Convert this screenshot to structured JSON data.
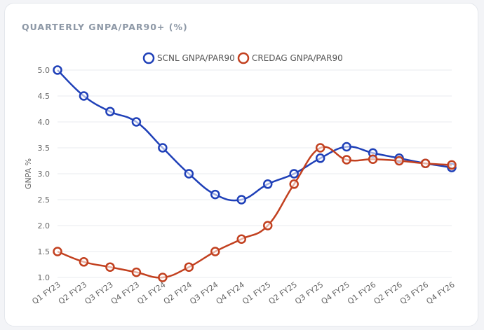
{
  "card": {
    "title": "QUARTERLY GNPA/PAR90+ (%)"
  },
  "chart_data": {
    "type": "line",
    "title": "",
    "ylabel": "GNPA %",
    "xlabel": "",
    "categories": [
      "Q1 FY23",
      "Q2 FY23",
      "Q3 FY23",
      "Q4 FY23",
      "Q1 FY24",
      "Q2 FY24",
      "Q3 FY24",
      "Q4 FY24",
      "Q1 FY25",
      "Q2 FY25",
      "Q3 FY25",
      "Q4 FY25",
      "Q1 FY26",
      "Q2 FY26",
      "Q3 FY26",
      "Q4 FY26"
    ],
    "ylim": [
      1.0,
      5.0
    ],
    "yticks": [
      "1.0",
      "1.5",
      "2.0",
      "2.5",
      "3.0",
      "3.5",
      "4.0",
      "4.5",
      "5.0"
    ],
    "grid": true,
    "legend_position": "top-center",
    "series": [
      {
        "name": "SCNL GNPA/PAR90",
        "color": "#1f40b8",
        "values": [
          5.0,
          4.5,
          4.2,
          4.0,
          3.5,
          3.0,
          2.6,
          2.5,
          2.8,
          3.0,
          3.3,
          3.52,
          3.4,
          3.3,
          3.2,
          3.12
        ]
      },
      {
        "name": "CREDAG GNPA/PAR90",
        "color": "#c2401f",
        "values": [
          1.5,
          1.3,
          1.2,
          1.1,
          1.0,
          1.2,
          1.5,
          1.74,
          2.0,
          2.8,
          3.5,
          3.27,
          3.28,
          3.25,
          3.2,
          3.17
        ]
      }
    ]
  }
}
